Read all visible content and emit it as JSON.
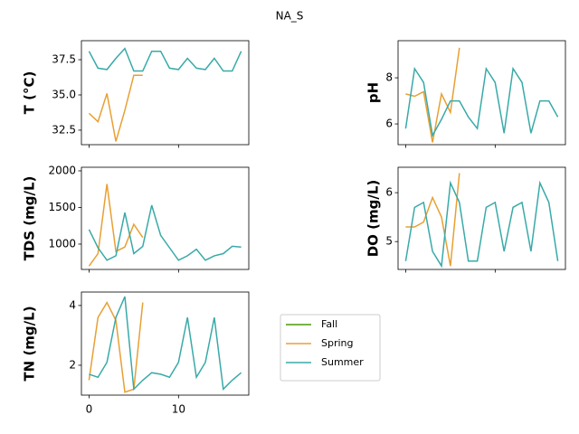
{
  "title": "NA_S",
  "legend": {
    "loc": "center",
    "entries": [
      {
        "name": "Fall",
        "color": "#4c9a0a"
      },
      {
        "name": "Spring",
        "color": "#e8a033"
      },
      {
        "name": "Summer",
        "color": "#38aaa8"
      }
    ]
  },
  "chart_data": [
    {
      "type": "line",
      "ylabel": "T  (°C)",
      "x": [
        0,
        1,
        2,
        3,
        4,
        5,
        6,
        7,
        8,
        9,
        10,
        11,
        12,
        13,
        14,
        15,
        16,
        17
      ],
      "series": [
        {
          "color": "#e8a033",
          "values": [
            33.7,
            33.1,
            35.1,
            31.7,
            33.9,
            36.4,
            36.4,
            null,
            null,
            null,
            null,
            null,
            null,
            null,
            null,
            null,
            null,
            null
          ]
        },
        {
          "color": "#38aaa8",
          "values": [
            38.1,
            36.9,
            36.8,
            37.6,
            38.3,
            36.7,
            36.7,
            38.1,
            38.1,
            36.9,
            36.8,
            37.6,
            36.9,
            36.8,
            37.6,
            36.7,
            36.7,
            38.1
          ]
        }
      ],
      "xlim": [
        -0.85,
        17.85
      ],
      "xticks": [
        0,
        10
      ],
      "xtick_labels": false,
      "ylim": [
        31.47,
        38.85
      ],
      "yticks": [
        32.5,
        {
          "value": 35,
          "label": "35.0"
        },
        37.5
      ]
    },
    {
      "type": "line",
      "ylabel": "pH",
      "x": [
        0,
        1,
        2,
        3,
        4,
        5,
        6,
        7,
        8,
        9,
        10,
        11,
        12,
        13,
        14,
        15,
        16,
        17
      ],
      "series": [
        {
          "color": "#e8a033",
          "values": [
            7.3,
            7.2,
            7.4,
            5.2,
            7.3,
            6.5,
            9.3,
            null,
            null,
            null,
            null,
            null,
            null,
            null,
            null,
            null,
            null,
            null
          ]
        },
        {
          "color": "#38aaa8",
          "values": [
            5.8,
            8.4,
            7.8,
            5.5,
            6.2,
            7.0,
            7.0,
            6.3,
            5.8,
            8.4,
            7.8,
            5.6,
            8.4,
            7.8,
            5.6,
            7.0,
            7.0,
            6.3
          ]
        }
      ],
      "xlim": [
        -0.85,
        17.85
      ],
      "xticks": [
        0,
        10
      ],
      "xtick_labels": false,
      "ylim": [
        5.1,
        9.61
      ],
      "yticks": [
        6,
        8
      ]
    },
    {
      "type": "line",
      "ylabel": "TDS (mg/L)",
      "x": [
        0,
        1,
        2,
        3,
        4,
        5,
        6,
        7,
        8,
        9,
        10,
        11,
        12,
        13,
        14,
        15,
        16,
        17
      ],
      "series": [
        {
          "color": "#e8a033",
          "values": [
            700,
            870,
            1820,
            900,
            960,
            1270,
            1090,
            null,
            null,
            null,
            null,
            null,
            null,
            null,
            null,
            null,
            null,
            null
          ]
        },
        {
          "color": "#38aaa8",
          "values": [
            1200,
            950,
            780,
            840,
            1430,
            870,
            970,
            1530,
            1120,
            950,
            780,
            840,
            930,
            780,
            840,
            870,
            970,
            960
          ]
        }
      ],
      "xlim": [
        -0.85,
        17.85
      ],
      "xticks": [
        0,
        10
      ],
      "xtick_labels": false,
      "ylim": [
        654,
        2049
      ],
      "yticks": [
        1000,
        1500,
        2000
      ]
    },
    {
      "type": "line",
      "ylabel": "DO (mg/L)",
      "x": [
        0,
        1,
        2,
        3,
        4,
        5,
        6,
        7,
        8,
        9,
        10,
        11,
        12,
        13,
        14,
        15,
        16,
        17
      ],
      "series": [
        {
          "color": "#e8a033",
          "values": [
            5.3,
            5.3,
            5.4,
            5.9,
            5.5,
            4.5,
            6.4,
            null,
            null,
            null,
            null,
            null,
            null,
            null,
            null,
            null,
            null,
            null
          ]
        },
        {
          "color": "#38aaa8",
          "values": [
            4.6,
            5.7,
            5.8,
            4.8,
            4.5,
            6.2,
            5.8,
            4.6,
            4.6,
            5.7,
            5.8,
            4.8,
            5.7,
            5.8,
            4.8,
            6.2,
            5.8,
            4.6
          ]
        }
      ],
      "xlim": [
        -0.85,
        17.85
      ],
      "xticks": [
        0,
        10
      ],
      "xtick_labels": false,
      "ylim": [
        4.43,
        6.52
      ],
      "yticks": [
        5,
        6
      ]
    },
    {
      "type": "line",
      "ylabel": "TN (mg/L)",
      "x": [
        0,
        1,
        2,
        3,
        4,
        5,
        6,
        7,
        8,
        9,
        10,
        11,
        12,
        13,
        14,
        15,
        16,
        17
      ],
      "series": [
        {
          "color": "#e8a033",
          "values": [
            1.5,
            3.6,
            4.1,
            3.5,
            1.1,
            1.2,
            4.1,
            null,
            null,
            null,
            null,
            null,
            null,
            null,
            null,
            null,
            null,
            null
          ]
        },
        {
          "color": "#38aaa8",
          "values": [
            1.7,
            1.6,
            2.1,
            3.6,
            4.3,
            1.2,
            1.5,
            1.75,
            1.7,
            1.6,
            2.1,
            3.6,
            1.6,
            2.1,
            3.6,
            1.2,
            1.5,
            1.75
          ]
        }
      ],
      "xlim": [
        -0.85,
        17.85
      ],
      "xticks": [
        0,
        10
      ],
      "xtick_labels": true,
      "ylim": [
        1.0,
        4.45
      ],
      "yticks": [
        2,
        4
      ]
    }
  ]
}
